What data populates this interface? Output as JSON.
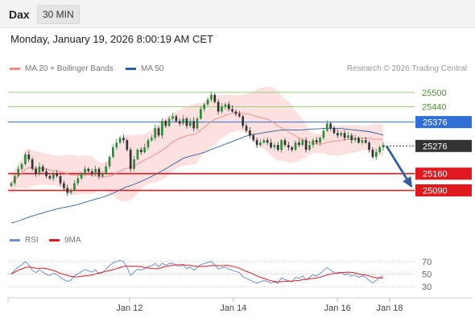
{
  "header": {
    "symbol": "Dax",
    "timeframe": "30 MIN"
  },
  "datetime": "Monday, January 19, 2026 8:00:19 AM CET",
  "legend": {
    "items": [
      {
        "label": "MA 20 + Bollinger Bands",
        "color": "#f28b82"
      },
      {
        "label": "MA 50",
        "color": "#2e5e9e"
      }
    ],
    "source": "Research © 2026 Trading Central"
  },
  "chart_data": [
    {
      "type": "candlestick",
      "title": "",
      "x_axis": {
        "tick_labels": [
          "Jan 12",
          "Jan 14",
          "Jan 16",
          "Jan 18"
        ]
      },
      "y_axis": {
        "ylim": [
          24930,
          25560
        ]
      },
      "levels": [
        {
          "value": 25500,
          "label": "25500",
          "kind": "resistance",
          "color": "#9ccf7a"
        },
        {
          "value": 25440,
          "label": "25440",
          "kind": "resistance",
          "color": "#9ccf7a"
        },
        {
          "value": 25376,
          "label": "25376",
          "kind": "pivot",
          "color": "#2f6fd6"
        },
        {
          "value": 25276,
          "label": "25276",
          "kind": "last-price",
          "color": "#333333"
        },
        {
          "value": 25160,
          "label": "25160",
          "kind": "support",
          "color": "#e0191f"
        },
        {
          "value": 25090,
          "label": "25090",
          "kind": "support",
          "color": "#e0191f"
        }
      ],
      "close": [
        25120,
        25150,
        25180,
        25200,
        25240,
        25220,
        25180,
        25160,
        25190,
        25170,
        25150,
        25140,
        25160,
        25150,
        25120,
        25100,
        25080,
        25090,
        25120,
        25140,
        25160,
        25180,
        25170,
        25160,
        25180,
        25150,
        25160,
        25190,
        25230,
        25270,
        25290,
        25310,
        25300,
        25260,
        25180,
        25220,
        25260,
        25250,
        25270,
        25300,
        25310,
        25350,
        25320,
        25380,
        25360,
        25390,
        25400,
        25380,
        25370,
        25390,
        25360,
        25380,
        25350,
        25390,
        25430,
        25450,
        25470,
        25490,
        25460,
        25420,
        25440,
        25450,
        25430,
        25420,
        25410,
        25400,
        25360,
        25340,
        25320,
        25300,
        25280,
        25290,
        25300,
        25290,
        25270,
        25280,
        25260,
        25300,
        25280,
        25270,
        25260,
        25290,
        25280,
        25300,
        25260,
        25280,
        25300,
        25290,
        25310,
        25340,
        25370,
        25350,
        25330,
        25320,
        25330,
        25310,
        25320,
        25300,
        25310,
        25290,
        25300,
        25290,
        25260,
        25230,
        25250,
        25270,
        25280
      ],
      "ma50_label": "MA 50",
      "ma20_label": "MA 20 + Bollinger Bands",
      "projection": {
        "from": 25276,
        "to": 25090
      }
    },
    {
      "type": "line",
      "title": "RSI",
      "series": [
        {
          "name": "RSI",
          "color": "#6f8fd8"
        },
        {
          "name": "9MA",
          "color": "#e0191f"
        }
      ],
      "levels": [
        {
          "value": 70,
          "label": "70"
        },
        {
          "value": 50,
          "label": "50"
        },
        {
          "value": 30,
          "label": "30"
        }
      ],
      "y_axis": {
        "ylim": [
          15,
          85
        ]
      }
    }
  ]
}
